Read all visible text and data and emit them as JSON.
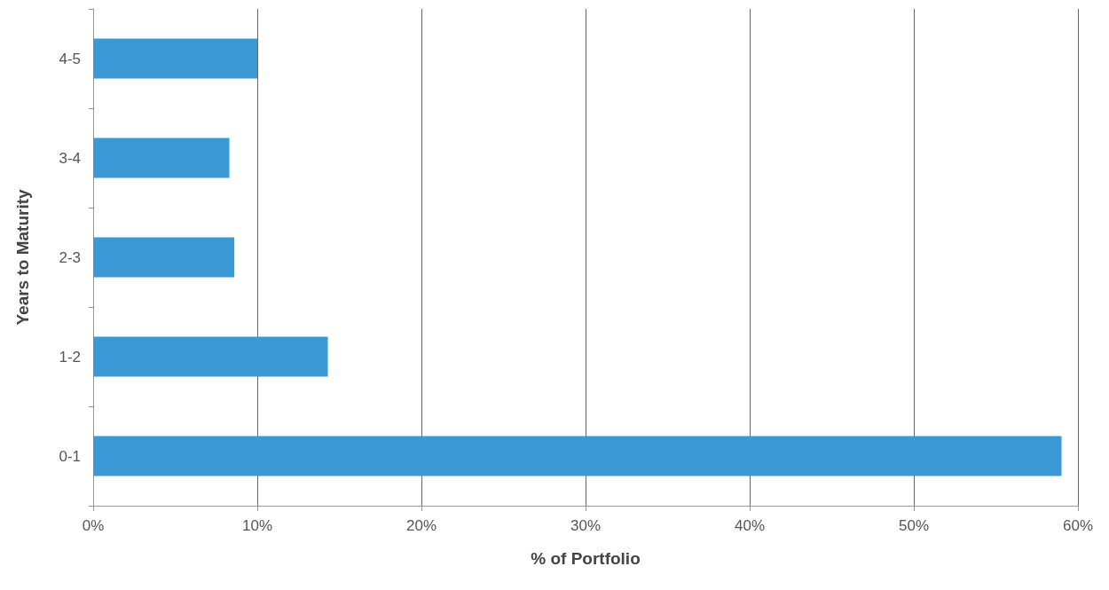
{
  "chart_data": {
    "type": "bar",
    "orientation": "horizontal",
    "xlabel": "% of Portfolio",
    "ylabel": "Years to Maturity",
    "categories": [
      "4-5",
      "3-4",
      "2-3",
      "1-2",
      "0-1"
    ],
    "values": [
      10.0,
      8.3,
      8.6,
      14.3,
      59.0
    ],
    "color": "#3b9ad6",
    "xlim": [
      0,
      60
    ],
    "xticks": [
      {
        "value": 0,
        "label": "0%"
      },
      {
        "value": 10,
        "label": "10%"
      },
      {
        "value": 20,
        "label": "20%"
      },
      {
        "value": 30,
        "label": "30%"
      },
      {
        "value": 40,
        "label": "40%"
      },
      {
        "value": 50,
        "label": "50%"
      },
      {
        "value": 60,
        "label": "60%"
      }
    ],
    "grid": "x"
  }
}
